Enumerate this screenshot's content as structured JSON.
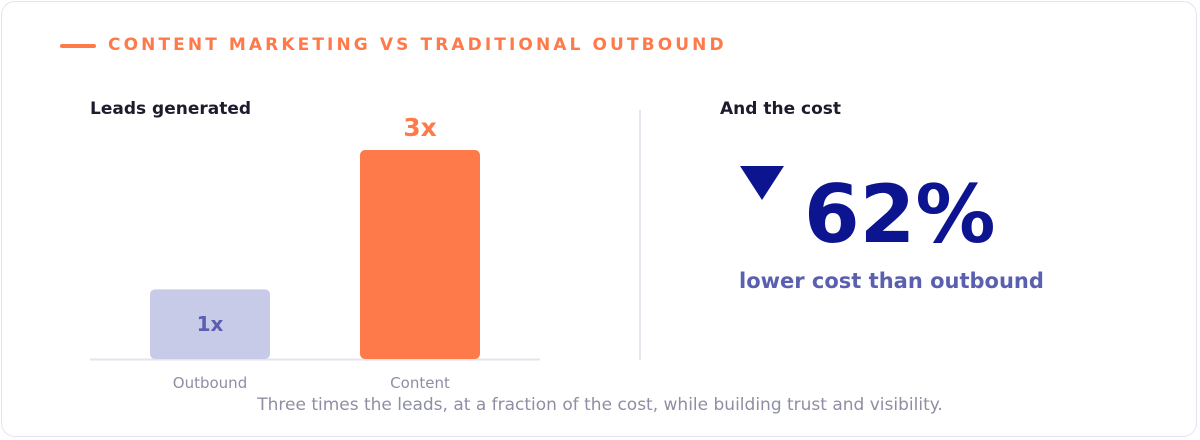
{
  "header": {
    "title": "CONTENT MARKETING VS TRADITIONAL OUTBOUND"
  },
  "left_panel": {
    "title": "Leads generated"
  },
  "right_panel": {
    "title": "And the cost",
    "direction_icon": "down-triangle-icon",
    "stat_value": "62%",
    "stat_caption": "lower cost than outbound"
  },
  "footnote": "Three times the leads, at a fraction of the cost, while building trust and visibility.",
  "colors": {
    "accent": "#ff7a4a",
    "navy": "#0d1490",
    "muted_bar": "#c8cbe8",
    "muted_label": "#5a5fb0",
    "axis_label": "#8e8ea4"
  },
  "chart_data": {
    "type": "bar",
    "categories": [
      "Outbound",
      "Content"
    ],
    "values": [
      1,
      3
    ],
    "value_labels": [
      "1x",
      "3x"
    ],
    "ylim": [
      0,
      3
    ],
    "grid": false,
    "title": "Leads generated"
  }
}
